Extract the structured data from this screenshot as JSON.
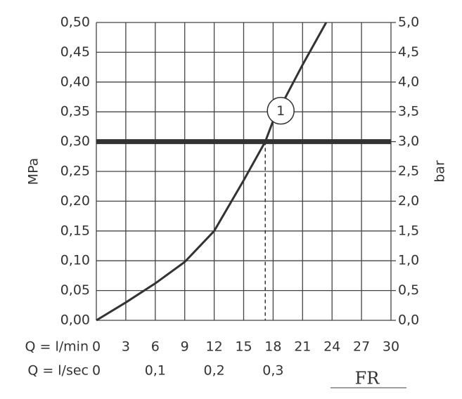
{
  "chart_data": {
    "type": "line",
    "y_title": "MPa",
    "y2_title": "bar",
    "x_title": "Q = l/min",
    "x2_title": "Q = l/sec",
    "x": [
      0,
      3,
      6,
      9,
      12,
      15,
      17.2,
      18,
      21,
      23.4
    ],
    "series": [
      {
        "color": "#333333",
        "values": [
          0,
          0.03,
          0.062,
          0.098,
          0.15,
          0.235,
          0.3,
          0.335,
          0.429,
          0.5
        ]
      }
    ],
    "xlim": [
      0,
      30
    ],
    "xticks": [
      0,
      3,
      6,
      9,
      12,
      15,
      18,
      21,
      24,
      27,
      30
    ],
    "x2lim": [
      0,
      0.5
    ],
    "x2ticks": [
      0,
      {
        "value": 0.1,
        "label": "0,1"
      },
      {
        "value": 0.2,
        "label": "0,2"
      },
      {
        "value": 0.3,
        "label": "0,3"
      }
    ],
    "ylim": [
      0,
      0.5
    ],
    "yticks": [
      {
        "value": 0,
        "label": "0,00"
      },
      {
        "value": 0.05,
        "label": "0,05"
      },
      {
        "value": 0.1,
        "label": "0,10"
      },
      {
        "value": 0.15,
        "label": "0,15"
      },
      {
        "value": 0.2,
        "label": "0,20"
      },
      {
        "value": 0.25,
        "label": "0,25"
      },
      {
        "value": 0.3,
        "label": "0,30"
      },
      {
        "value": 0.35,
        "label": "0,35"
      },
      {
        "value": 0.4,
        "label": "0,40"
      },
      {
        "value": 0.45,
        "label": "0,45"
      },
      {
        "value": 0.5,
        "label": "0,50"
      }
    ],
    "y2lim": [
      0,
      5
    ],
    "y2ticks": [
      {
        "value": 0,
        "label": "0,0"
      },
      {
        "value": 0.5,
        "label": "0,5"
      },
      {
        "value": 1,
        "label": "1,0"
      },
      {
        "value": 1.5,
        "label": "1,5"
      },
      {
        "value": 2,
        "label": "2,0"
      },
      {
        "value": 2.5,
        "label": "2,5"
      },
      {
        "value": 3,
        "label": "3,0"
      },
      {
        "value": 3.5,
        "label": "3,5"
      },
      {
        "value": 4,
        "label": "4,0"
      },
      {
        "value": 4.5,
        "label": "4,5"
      },
      {
        "value": 5,
        "label": "5,0"
      }
    ],
    "grid": true,
    "threshold": 0.3,
    "operating_point": {
      "x": 17.2,
      "y": 0.3,
      "label": "1"
    },
    "logo": "FR"
  }
}
